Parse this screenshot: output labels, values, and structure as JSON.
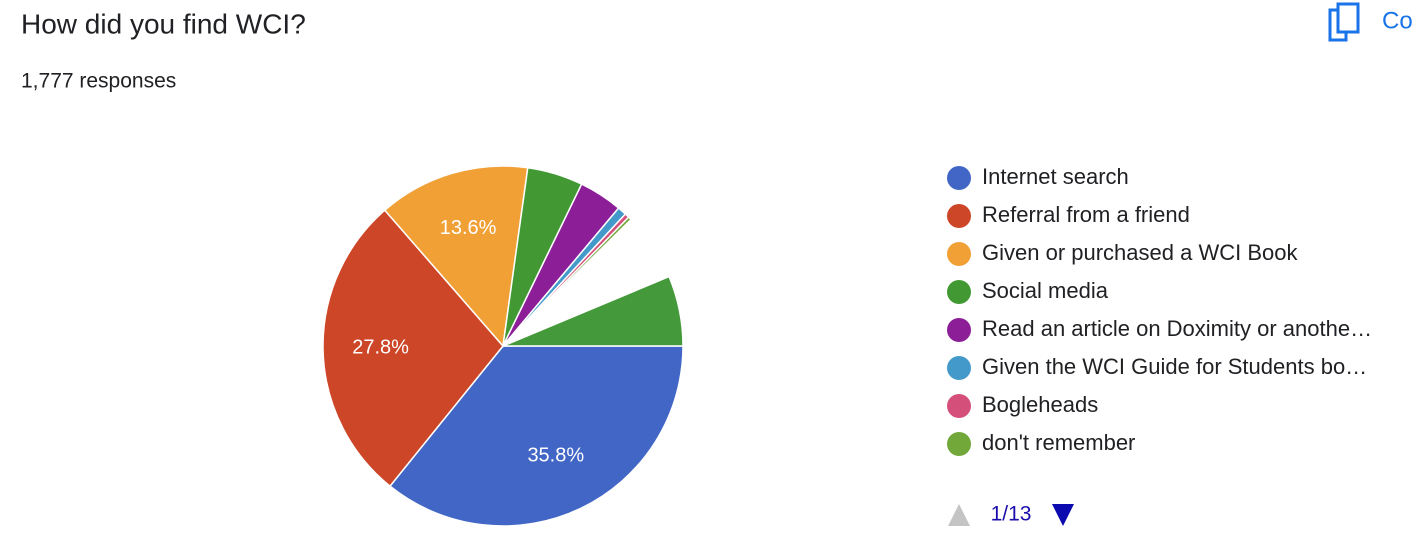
{
  "chart_data": {
    "type": "pie",
    "title": "How did you find WCI?",
    "subtitle": "1,777 responses",
    "copy_button": "Co",
    "pagination": "1/13",
    "start_angle": 90,
    "categories": [
      "Internet search",
      "Referral from a friend",
      "Given or purchased a WCI Book",
      "Social media",
      "Read an article on Doximity or anothe…",
      "Given the WCI Guide for Students bo…",
      "Bogleheads",
      "don't remember",
      null,
      null
    ],
    "values": [
      35.8,
      27.8,
      13.6,
      5.0,
      3.9,
      0.8,
      0.4,
      0.3,
      6.1,
      6.3
    ],
    "value_labels": [
      "35.8%",
      "27.8%",
      "13.6%",
      null,
      null,
      null,
      null,
      null,
      null,
      null
    ],
    "colors": [
      "#4266c6",
      "#cc4627",
      "#f1a036",
      "#429933",
      "#8c1e98",
      "#4399c9",
      "#d4507a",
      "#72a83a",
      "#ffffff",
      "#449a3a"
    ]
  }
}
